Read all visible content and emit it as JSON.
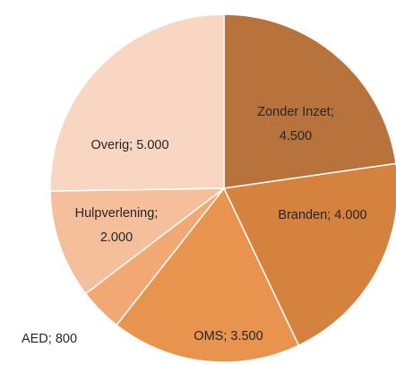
{
  "chart_data": {
    "type": "pie",
    "categories": [
      "Zonder Inzet",
      "Branden",
      "OMS",
      "AED",
      "Hulpverlening",
      "Overig"
    ],
    "values": [
      4500,
      4000,
      3500,
      800,
      2000,
      5000
    ],
    "value_labels": [
      "4.500",
      "4.000",
      "3.500",
      "800",
      "2.000",
      "5.000"
    ],
    "label_separator": "; ",
    "colors": [
      "#b8733d",
      "#d6823f",
      "#e9944e",
      "#f1a872",
      "#f5bf9c",
      "#f9d6c2"
    ],
    "start_angle": 0,
    "direction": "clockwise"
  }
}
